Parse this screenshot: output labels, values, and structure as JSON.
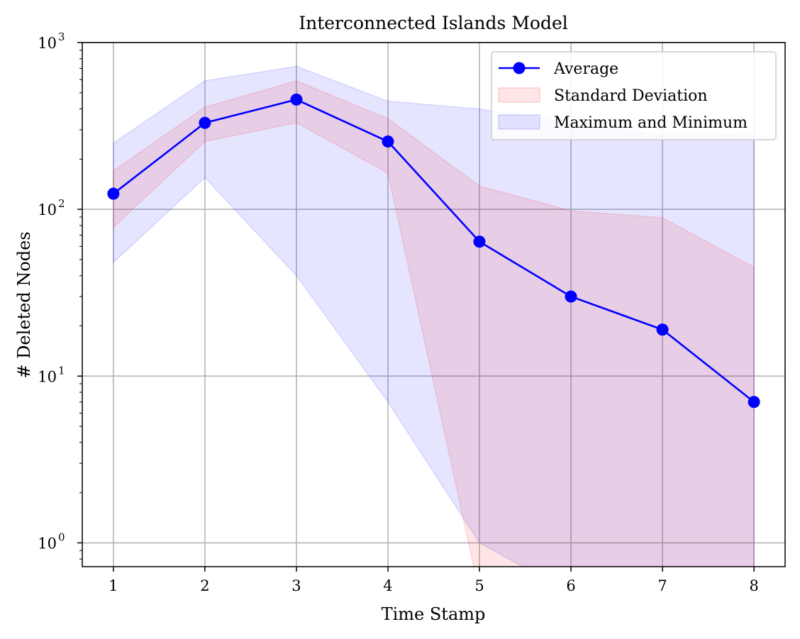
{
  "chart_data": {
    "type": "line",
    "title": "Interconnected Islands Model",
    "xlabel": "Time Stamp",
    "ylabel": "# Deleted Nodes",
    "yscale": "log",
    "x": [
      1,
      2,
      3,
      4,
      5,
      6,
      7,
      8
    ],
    "xlim": [
      0.66,
      8.34
    ],
    "ylim": [
      0.72,
      1000
    ],
    "xticks": [
      "1",
      "2",
      "3",
      "4",
      "5",
      "6",
      "7",
      "8"
    ],
    "yticks": [
      {
        "value": 1,
        "base": "10",
        "exp": "0"
      },
      {
        "value": 10,
        "base": "10",
        "exp": "1"
      },
      {
        "value": 100,
        "base": "10",
        "exp": "2"
      },
      {
        "value": 1000,
        "base": "10",
        "exp": "3"
      }
    ],
    "grid": true,
    "legend_position": "top-right",
    "series": [
      {
        "name": "Maximum and Minimum",
        "kind": "band",
        "color": "#0000ff",
        "upper": [
          250,
          590,
          720,
          445,
          400,
          330,
          280,
          280
        ],
        "lower": [
          48,
          155,
          40,
          7,
          1,
          0.5,
          0.5,
          0.5
        ]
      },
      {
        "name": "Standard Deviation",
        "kind": "band",
        "color": "#ff0000",
        "upper": [
          170,
          410,
          590,
          350,
          138,
          98,
          89,
          45
        ],
        "lower": [
          78,
          255,
          330,
          165,
          0.5,
          0.5,
          0.5,
          0.5
        ]
      },
      {
        "name": "Average",
        "kind": "line",
        "color": "#0000ff",
        "values": [
          124,
          330,
          455,
          255,
          64,
          30,
          19,
          7
        ]
      }
    ]
  }
}
